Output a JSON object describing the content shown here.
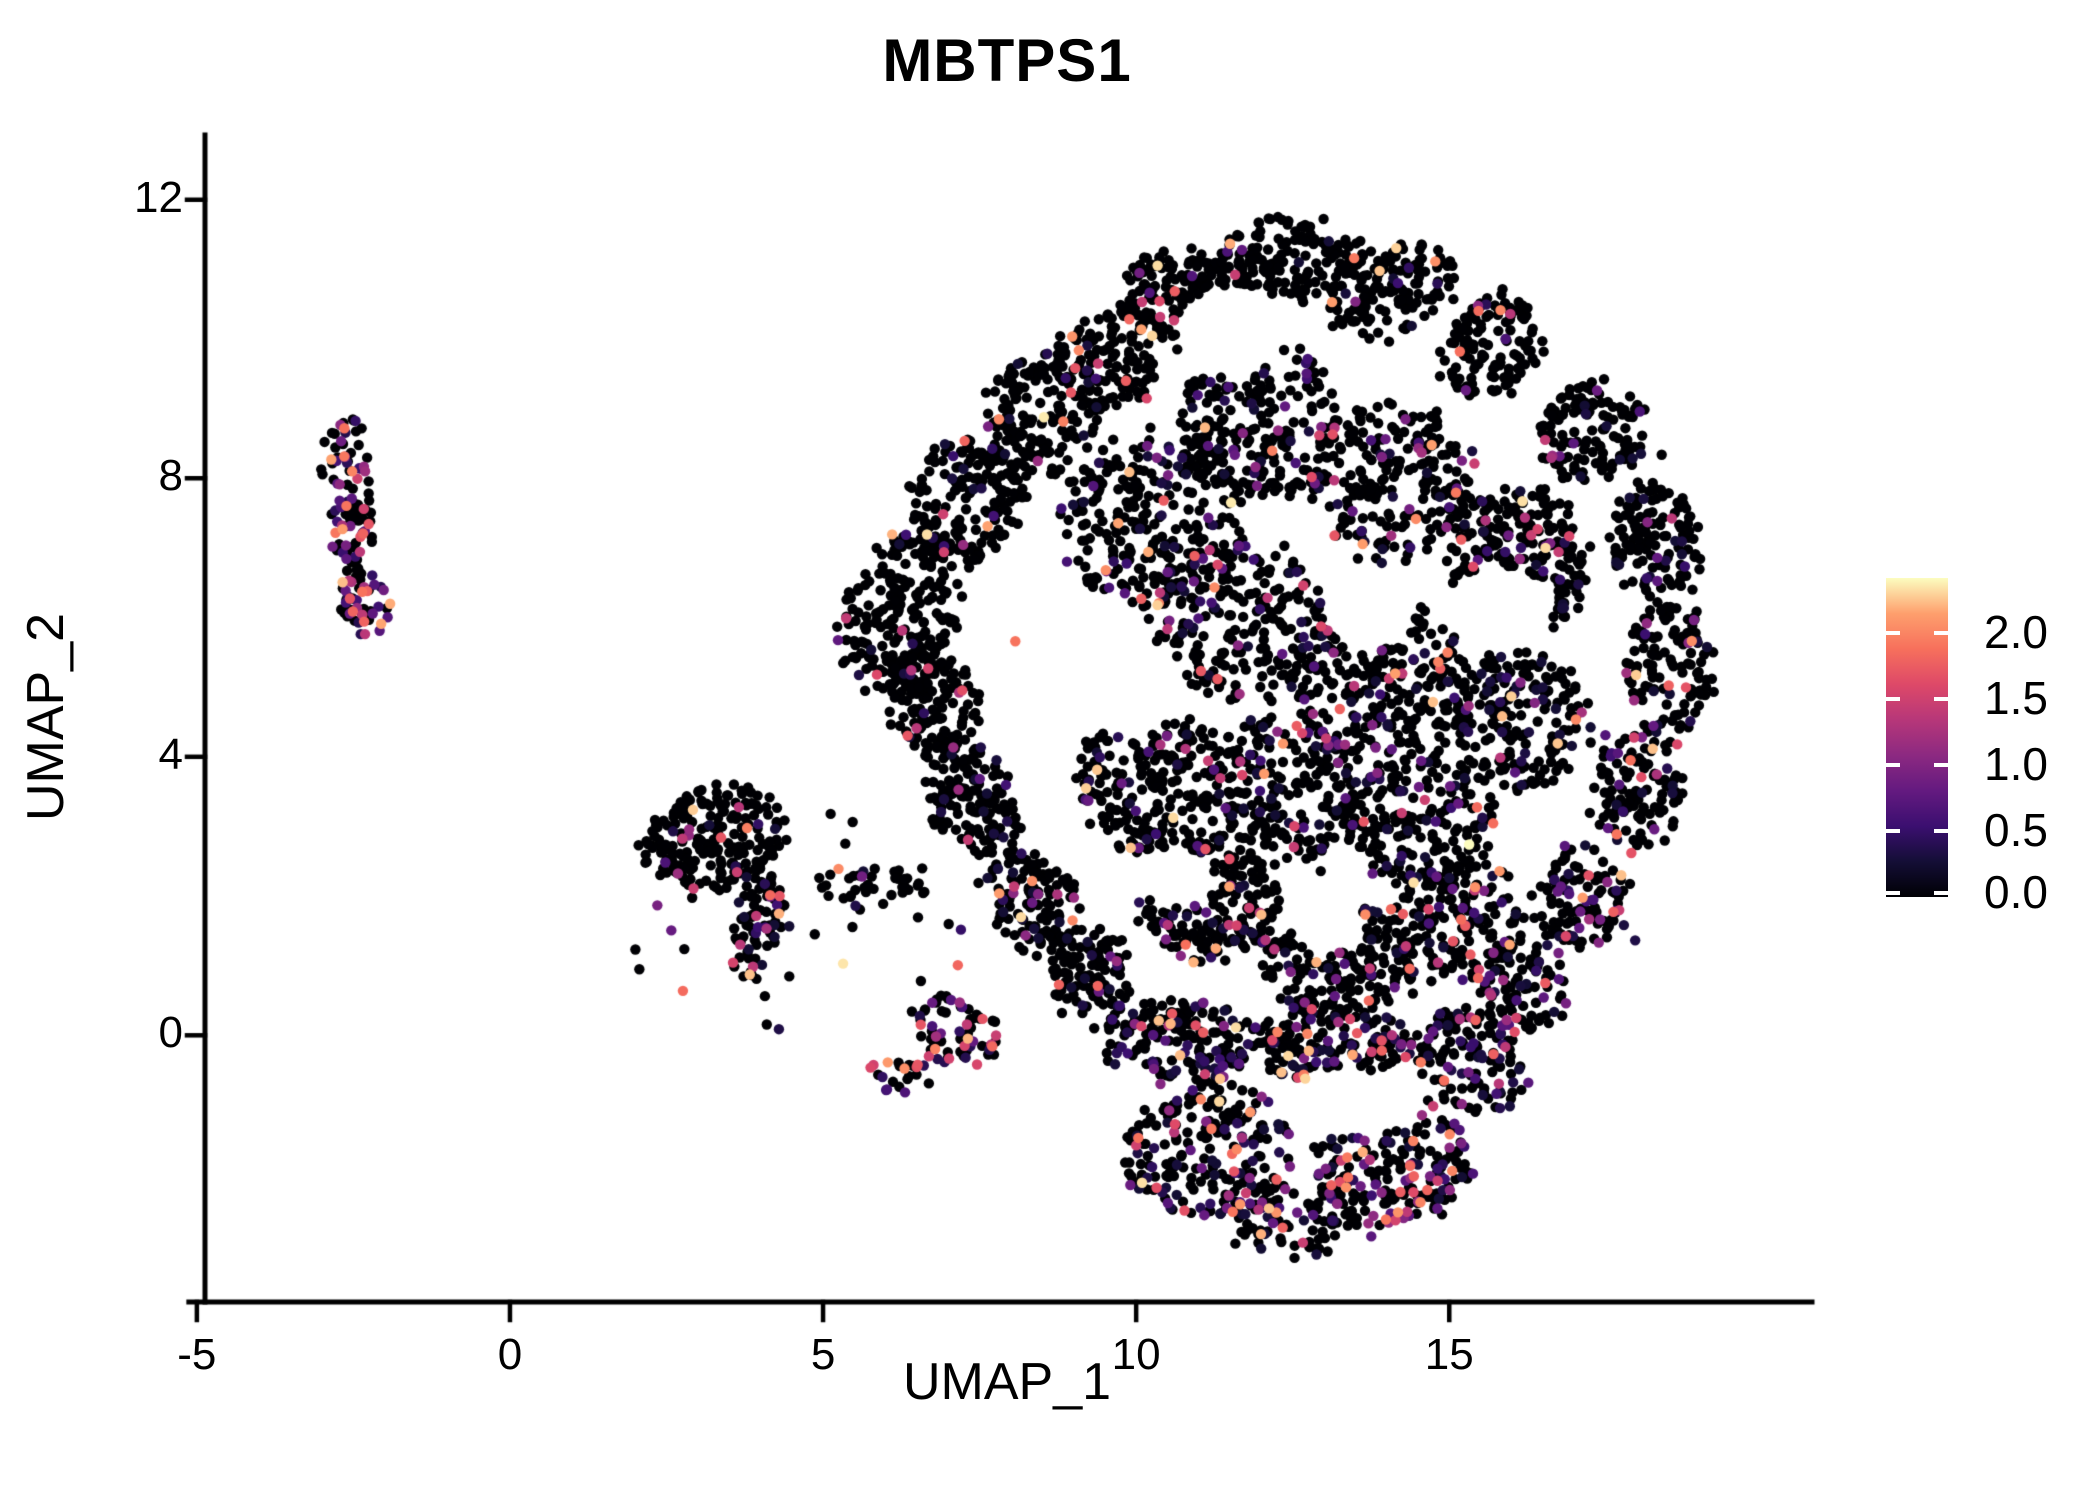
{
  "figure": {
    "title": "MBTPS1"
  },
  "chart_data": {
    "type": "scatter",
    "title": "MBTPS1",
    "xlabel": "UMAP_1",
    "ylabel": "UMAP_2",
    "x_domain": [
      -4.87,
      21.08
    ],
    "y_domain": [
      -3.83,
      12.93
    ],
    "x_ticks": [
      {
        "value": -5,
        "label": "-5"
      },
      {
        "value": 0,
        "label": "0"
      },
      {
        "value": 5,
        "label": "5"
      },
      {
        "value": 10,
        "label": "10"
      },
      {
        "value": 15,
        "label": "15"
      }
    ],
    "y_ticks": [
      {
        "value": 12,
        "label": "12"
      },
      {
        "value": 8,
        "label": "8"
      },
      {
        "value": 4,
        "label": "4"
      },
      {
        "value": 0,
        "label": "0"
      }
    ],
    "grid": false,
    "legend_position": "right",
    "point_radius_px": 5.2,
    "seed": 42,
    "colorbar": {
      "colormap": "magma",
      "vmin": 0.0,
      "vmax": 2.42,
      "stops": [
        "#000004",
        "#140e36",
        "#3b0f70",
        "#641a80",
        "#8c2981",
        "#b73779",
        "#de4968",
        "#f7705c",
        "#fe9f6d",
        "#fcfdbf"
      ],
      "ticks": [
        {
          "value": 2.0,
          "label": "2.0"
        },
        {
          "value": 1.5,
          "label": "1.5"
        },
        {
          "value": 1.0,
          "label": "1.0"
        },
        {
          "value": 0.5,
          "label": "0.5"
        },
        {
          "value": 0.0,
          "label": "0.0"
        }
      ]
    },
    "clusters": [
      {
        "name": "left-cluster-upper",
        "cx": -2.57,
        "cy": 8.17,
        "rx": 0.38,
        "ry": 0.75,
        "rot": 0,
        "n": 55,
        "colored_frac": 0.4,
        "profile": "mid"
      },
      {
        "name": "left-cluster-mid",
        "cx": -2.52,
        "cy": 7.27,
        "rx": 0.32,
        "ry": 0.5,
        "rot": 0,
        "n": 40,
        "colored_frac": 0.45,
        "profile": "mid"
      },
      {
        "name": "left-cluster-bridge",
        "cx": -2.48,
        "cy": 6.74,
        "rx": 0.19,
        "ry": 0.2,
        "rot": 0,
        "n": 8,
        "colored_frac": 0.5,
        "profile": "mid"
      },
      {
        "name": "left-cluster-lower",
        "cx": -2.33,
        "cy": 6.24,
        "rx": 0.38,
        "ry": 0.49,
        "rot": 0,
        "n": 48,
        "colored_frac": 0.55,
        "profile": "mid"
      },
      {
        "name": "mid-cluster-dense",
        "cx": 3.23,
        "cy": 2.82,
        "rx": 1.15,
        "ry": 0.75,
        "rot": -15,
        "n": 210,
        "colored_frac": 0.1,
        "profile": "low"
      },
      {
        "name": "mid-cluster-tail",
        "cx": 3.99,
        "cy": 1.51,
        "rx": 0.42,
        "ry": 0.83,
        "rot": 10,
        "n": 80,
        "colored_frac": 0.3,
        "profile": "low"
      },
      {
        "name": "mid-cluster-chain",
        "cx": 5.75,
        "cy": 2.15,
        "rx": 0.88,
        "ry": 0.23,
        "rot": 3,
        "n": 40,
        "colored_frac": 0.08,
        "profile": "low"
      },
      {
        "name": "mid-cluster-sparse",
        "cx": 4.79,
        "cy": 1.51,
        "rx": 2.88,
        "ry": 1.72,
        "rot": 0,
        "n": 28,
        "colored_frac": 0.15,
        "profile": "low"
      },
      {
        "name": "mid-clump-a",
        "cx": 7.16,
        "cy": 0.1,
        "rx": 0.8,
        "ry": 0.52,
        "rot": 0,
        "n": 65,
        "colored_frac": 0.4,
        "profile": "mid"
      },
      {
        "name": "mid-clump-b",
        "cx": 6.2,
        "cy": -0.53,
        "rx": 0.4,
        "ry": 0.26,
        "rot": 0,
        "n": 22,
        "colored_frac": 0.35,
        "profile": "mid"
      },
      {
        "name": "main-rim-left-tip",
        "cx": 6.23,
        "cy": 6.09,
        "rx": 0.88,
        "ry": 1.22,
        "rot": 20,
        "n": 200,
        "colored_frac": 0.06,
        "profile": "low"
      },
      {
        "name": "main-rim-upleft-1",
        "cx": 7.27,
        "cy": 7.67,
        "rx": 0.88,
        "ry": 1.0,
        "rot": 30,
        "n": 180,
        "colored_frac": 0.08,
        "profile": "low"
      },
      {
        "name": "main-rim-upleft-2",
        "cx": 8.47,
        "cy": 8.89,
        "rx": 0.88,
        "ry": 0.86,
        "rot": 35,
        "n": 150,
        "colored_frac": 0.08,
        "profile": "low"
      },
      {
        "name": "main-rim-upleft-3",
        "cx": 9.5,
        "cy": 9.68,
        "rx": 0.8,
        "ry": 0.72,
        "rot": 0,
        "n": 120,
        "colored_frac": 0.08,
        "profile": "low"
      },
      {
        "name": "main-rim-top-1",
        "cx": 10.78,
        "cy": 10.54,
        "rx": 1.04,
        "ry": 0.69,
        "rot": 15,
        "n": 140,
        "colored_frac": 0.06,
        "profile": "low"
      },
      {
        "name": "main-rim-top-2",
        "cx": 12.46,
        "cy": 11.18,
        "rx": 1.2,
        "ry": 0.6,
        "rot": 0,
        "n": 150,
        "colored_frac": 0.06,
        "profile": "low"
      },
      {
        "name": "main-rim-top-3",
        "cx": 14.06,
        "cy": 10.68,
        "rx": 1.12,
        "ry": 0.65,
        "rot": -20,
        "n": 140,
        "colored_frac": 0.08,
        "profile": "low"
      },
      {
        "name": "main-rim-upright-1",
        "cx": 15.73,
        "cy": 9.89,
        "rx": 0.96,
        "ry": 0.65,
        "rot": -30,
        "n": 130,
        "colored_frac": 0.1,
        "profile": "low"
      },
      {
        "name": "main-rim-upright-2",
        "cx": 17.25,
        "cy": 8.67,
        "rx": 0.88,
        "ry": 0.72,
        "rot": -40,
        "n": 130,
        "colored_frac": 0.12,
        "profile": "low"
      },
      {
        "name": "main-rim-right-1",
        "cx": 18.29,
        "cy": 7.1,
        "rx": 0.72,
        "ry": 0.86,
        "rot": -10,
        "n": 130,
        "colored_frac": 0.15,
        "profile": "low"
      },
      {
        "name": "main-rim-right-2",
        "cx": 18.53,
        "cy": 5.3,
        "rx": 0.67,
        "ry": 0.93,
        "rot": 0,
        "n": 120,
        "colored_frac": 0.18,
        "profile": "low"
      },
      {
        "name": "main-rim-right-3",
        "cx": 18.05,
        "cy": 3.51,
        "rx": 0.72,
        "ry": 0.86,
        "rot": 15,
        "n": 120,
        "colored_frac": 0.18,
        "profile": "low"
      },
      {
        "name": "main-rim-botright-1",
        "cx": 17.09,
        "cy": 1.94,
        "rx": 0.8,
        "ry": 0.79,
        "rot": 25,
        "n": 110,
        "colored_frac": 0.2,
        "profile": "low"
      },
      {
        "name": "main-rim-botright-2",
        "cx": 16.13,
        "cy": 0.65,
        "rx": 0.72,
        "ry": 0.72,
        "rot": 30,
        "n": 100,
        "colored_frac": 0.22,
        "profile": "low"
      },
      {
        "name": "main-rim-botleft-1",
        "cx": 6.71,
        "cy": 4.8,
        "rx": 0.72,
        "ry": 0.86,
        "rot": -15,
        "n": 150,
        "colored_frac": 0.08,
        "profile": "low"
      },
      {
        "name": "main-rim-botleft-2",
        "cx": 7.43,
        "cy": 3.37,
        "rx": 0.72,
        "ry": 0.79,
        "rot": -20,
        "n": 140,
        "colored_frac": 0.1,
        "profile": "low"
      },
      {
        "name": "main-rim-botleft-3",
        "cx": 8.39,
        "cy": 1.94,
        "rx": 0.72,
        "ry": 0.79,
        "rot": -25,
        "n": 130,
        "colored_frac": 0.12,
        "profile": "low"
      },
      {
        "name": "main-rim-botleft-4",
        "cx": 9.27,
        "cy": 0.86,
        "rx": 0.64,
        "ry": 0.72,
        "rot": -25,
        "n": 110,
        "colored_frac": 0.15,
        "profile": "low"
      },
      {
        "name": "main-int-purple-streak",
        "cx": 10.22,
        "cy": 7.38,
        "rx": 1.44,
        "ry": 1.29,
        "rot": 0,
        "n": 260,
        "colored_frac": 0.18,
        "profile": "low"
      },
      {
        "name": "main-int-uppermid",
        "cx": 11.98,
        "cy": 8.82,
        "rx": 1.28,
        "ry": 1.15,
        "rot": 0,
        "n": 220,
        "colored_frac": 0.1,
        "profile": "low"
      },
      {
        "name": "main-int-upperright",
        "cx": 14.06,
        "cy": 7.96,
        "rx": 1.36,
        "ry": 1.15,
        "rot": 0,
        "n": 240,
        "colored_frac": 0.14,
        "profile": "low"
      },
      {
        "name": "main-int-right",
        "cx": 16.13,
        "cy": 6.81,
        "rx": 1.12,
        "ry": 1.08,
        "rot": 0,
        "n": 200,
        "colored_frac": 0.16,
        "profile": "low"
      },
      {
        "name": "main-int-center-1",
        "cx": 11.66,
        "cy": 5.95,
        "rx": 1.36,
        "ry": 1.15,
        "rot": 0,
        "n": 230,
        "colored_frac": 0.14,
        "profile": "low"
      },
      {
        "name": "main-int-center-2",
        "cx": 13.9,
        "cy": 5.09,
        "rx": 1.44,
        "ry": 1.22,
        "rot": 0,
        "n": 250,
        "colored_frac": 0.16,
        "profile": "low"
      },
      {
        "name": "main-int-center-3",
        "cx": 16.13,
        "cy": 4.52,
        "rx": 1.12,
        "ry": 1.0,
        "rot": 0,
        "n": 190,
        "colored_frac": 0.18,
        "profile": "low"
      },
      {
        "name": "main-int-lower-1",
        "cx": 10.22,
        "cy": 3.66,
        "rx": 1.2,
        "ry": 1.08,
        "rot": 0,
        "n": 210,
        "colored_frac": 0.12,
        "profile": "low"
      },
      {
        "name": "main-int-lower-2",
        "cx": 12.3,
        "cy": 3.51,
        "rx": 1.28,
        "ry": 1.08,
        "rot": 0,
        "n": 220,
        "colored_frac": 0.16,
        "profile": "low"
      },
      {
        "name": "main-int-lower-3",
        "cx": 14.54,
        "cy": 3.08,
        "rx": 1.2,
        "ry": 1.0,
        "rot": 0,
        "n": 200,
        "colored_frac": 0.18,
        "profile": "low"
      },
      {
        "name": "main-int-bottom-1",
        "cx": 11.18,
        "cy": 1.94,
        "rx": 1.12,
        "ry": 0.93,
        "rot": 0,
        "n": 190,
        "colored_frac": 0.2,
        "profile": "low"
      },
      {
        "name": "main-int-bottom-2",
        "cx": 13.26,
        "cy": 1.08,
        "rx": 1.28,
        "ry": 0.86,
        "rot": 0,
        "n": 180,
        "colored_frac": 0.18,
        "profile": "low"
      },
      {
        "name": "main-int-bottom-3",
        "cx": 15.18,
        "cy": 1.65,
        "rx": 1.04,
        "ry": 0.86,
        "rot": 0,
        "n": 160,
        "colored_frac": 0.18,
        "profile": "low"
      },
      {
        "name": "lobe-band-left",
        "cx": 10.7,
        "cy": -0.07,
        "rx": 1.28,
        "ry": 0.57,
        "rot": 0,
        "n": 160,
        "colored_frac": 0.3,
        "profile": "low"
      },
      {
        "name": "lobe-band-mid",
        "cx": 13.1,
        "cy": -0.14,
        "rx": 1.28,
        "ry": 0.54,
        "rot": 0,
        "n": 160,
        "colored_frac": 0.3,
        "profile": "low"
      },
      {
        "name": "lobe-band-right",
        "cx": 15.34,
        "cy": -0.36,
        "rx": 0.96,
        "ry": 0.65,
        "rot": 40,
        "n": 120,
        "colored_frac": 0.25,
        "profile": "low"
      },
      {
        "name": "lobe-left-mass",
        "cx": 11.18,
        "cy": -1.65,
        "rx": 1.36,
        "ry": 1.0,
        "rot": 0,
        "n": 220,
        "colored_frac": 0.35,
        "profile": "low"
      },
      {
        "name": "lobe-right-mass",
        "cx": 14.06,
        "cy": -1.79,
        "rx": 1.28,
        "ry": 0.93,
        "rot": 0,
        "n": 200,
        "colored_frac": 0.32,
        "profile": "low"
      },
      {
        "name": "lobe-bottom",
        "cx": 12.46,
        "cy": -2.65,
        "rx": 1.12,
        "ry": 0.5,
        "rot": 0,
        "n": 90,
        "colored_frac": 0.28,
        "profile": "low"
      }
    ],
    "voids": [
      {
        "cx": 10.65,
        "cy": 2.27,
        "rx": 0.61,
        "ry": 0.43
      },
      {
        "cx": 13.05,
        "cy": 1.68,
        "rx": 0.58,
        "ry": 0.52
      },
      {
        "cx": 13.42,
        "cy": -1.0,
        "rx": 1.2,
        "ry": 0.47
      },
      {
        "cx": 11.5,
        "cy": 10.11,
        "rx": 0.88,
        "ry": 0.65
      },
      {
        "cx": 9.82,
        "cy": 5.02,
        "rx": 0.96,
        "ry": 0.72
      },
      {
        "cx": 15.81,
        "cy": 6.16,
        "rx": 0.88,
        "ry": 0.57
      },
      {
        "cx": 13.74,
        "cy": 5.95,
        "rx": 0.64,
        "ry": 0.43
      }
    ],
    "highlight_points": [
      {
        "x": 5.32,
        "y": 1.03,
        "value": 2.35
      },
      {
        "x": 8.07,
        "y": 5.66,
        "value": 1.9
      },
      {
        "x": 5.86,
        "y": 5.18,
        "value": 1.6
      },
      {
        "x": 17.36,
        "y": 9.26,
        "value": 0.85
      },
      {
        "x": -2.52,
        "y": 8.1,
        "value": 2.0
      },
      {
        "x": -2.28,
        "y": 6.38,
        "value": 1.8
      },
      {
        "x": 3.37,
        "y": 2.84,
        "value": 1.7
      },
      {
        "x": 11.07,
        "y": 0.04,
        "value": 1.75
      },
      {
        "x": 14.22,
        "y": -2.25,
        "value": 1.75
      },
      {
        "x": 6.69,
        "y": -0.3,
        "value": 1.5
      }
    ]
  }
}
